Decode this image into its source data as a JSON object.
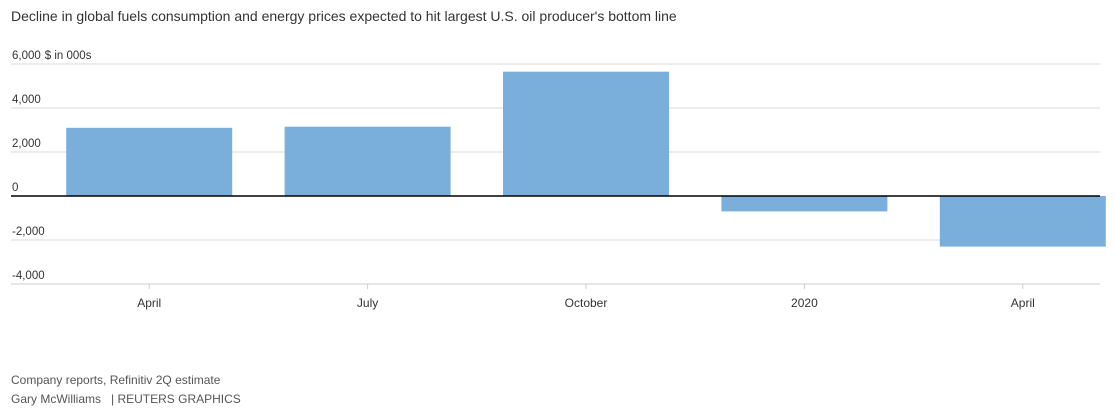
{
  "chart_data": {
    "type": "bar",
    "title": "Decline in global fuels consumption and energy prices expected to hit largest U.S. oil producer's bottom line",
    "unit_label": "$ in 000s",
    "categories": [
      "April",
      "July",
      "October",
      "2020",
      "April"
    ],
    "values": [
      3100,
      3150,
      5650,
      -700,
      -2300
    ],
    "ylim": [
      -4000,
      6000
    ],
    "yticks": [
      6000,
      4000,
      2000,
      0,
      -2000,
      -4000
    ],
    "ytick_labels": [
      "6,000",
      "4,000",
      "2,000",
      "0",
      "-2,000",
      "-4,000"
    ],
    "bar_color": "#7aaedb",
    "grid": true
  },
  "footer": {
    "source": "Company reports, Refinitiv 2Q estimate",
    "author": "Gary McWilliams",
    "publisher": "| REUTERS GRAPHICS"
  }
}
